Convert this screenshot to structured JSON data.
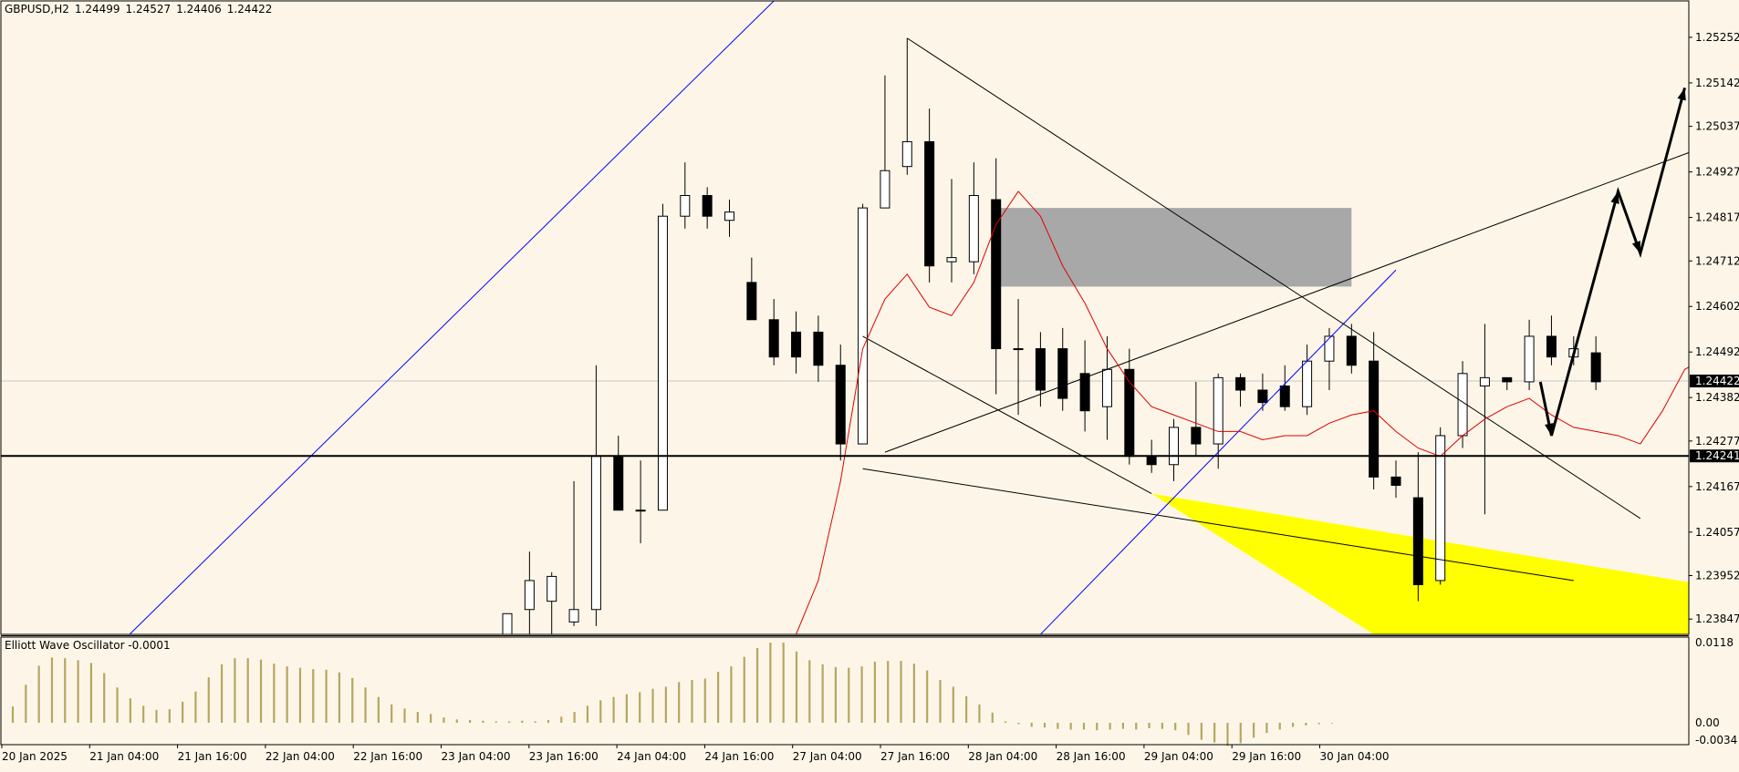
{
  "header": {
    "symbol": "GBPUSD,H2",
    "open": "1.24499",
    "high": "1.24527",
    "low": "1.24406",
    "close": "1.24422"
  },
  "oscillator": {
    "title": "Elliott Wave Oscillator -0.0001",
    "axis_labels": [
      "0.0118",
      "0.00",
      "-0.0034"
    ]
  },
  "colors": {
    "background": "#fdf6e8",
    "bull_candle": "#ffffff",
    "bear_candle": "#000000",
    "channel_line": "#0000ff",
    "moving_average": "#e00000",
    "supply_zone": "#a8a8a8",
    "demand_zone": "#ffff00",
    "oscillator_bars": "#b5a660"
  },
  "chart_data": {
    "type": "candlestick",
    "symbol": "GBPUSD",
    "timeframe": "H2",
    "price_axis_labels": [
      "1.25252",
      "1.25142",
      "1.25037",
      "1.24927",
      "1.24817",
      "1.24712",
      "1.24602",
      "1.24492",
      "1.24382",
      "1.24277",
      "1.24167",
      "1.24057",
      "1.23952",
      "1.23847"
    ],
    "current_price": "1.24422",
    "horizontal_level": "1.24241",
    "time_labels": [
      "20 Jan 2025",
      "21 Jan 04:00",
      "21 Jan 16:00",
      "22 Jan 04:00",
      "22 Jan 16:00",
      "23 Jan 04:00",
      "23 Jan 16:00",
      "24 Jan 04:00",
      "24 Jan 16:00",
      "27 Jan 04:00",
      "27 Jan 16:00",
      "28 Jan 04:00",
      "28 Jan 16:00",
      "29 Jan 04:00",
      "29 Jan 16:00",
      "30 Jan 04:00"
    ],
    "ylim": [
      1.2381,
      1.2534
    ],
    "candles": [
      {
        "o": 1.2381,
        "h": 1.2386,
        "l": 1.2381,
        "c": 1.2386
      },
      {
        "o": 1.2387,
        "h": 1.2401,
        "l": 1.2381,
        "c": 1.2394
      },
      {
        "o": 1.2389,
        "h": 1.2396,
        "l": 1.2381,
        "c": 1.2395
      },
      {
        "o": 1.2384,
        "h": 1.2418,
        "l": 1.2383,
        "c": 1.2387
      },
      {
        "o": 1.2387,
        "h": 1.2446,
        "l": 1.2383,
        "c": 1.2424
      },
      {
        "o": 1.2424,
        "h": 1.2429,
        "l": 1.2411,
        "c": 1.2411
      },
      {
        "o": 1.2411,
        "h": 1.2423,
        "l": 1.2403,
        "c": 1.2411
      },
      {
        "o": 1.2411,
        "h": 1.2485,
        "l": 1.2411,
        "c": 1.2482
      },
      {
        "o": 1.2482,
        "h": 1.2495,
        "l": 1.2479,
        "c": 1.2487
      },
      {
        "o": 1.2487,
        "h": 1.2489,
        "l": 1.2479,
        "c": 1.2482
      },
      {
        "o": 1.2481,
        "h": 1.2486,
        "l": 1.2477,
        "c": 1.2483
      },
      {
        "o": 1.2466,
        "h": 1.2472,
        "l": 1.2457,
        "c": 1.2457
      },
      {
        "o": 1.2457,
        "h": 1.2462,
        "l": 1.2446,
        "c": 1.2448
      },
      {
        "o": 1.2454,
        "h": 1.2459,
        "l": 1.2444,
        "c": 1.2448
      },
      {
        "o": 1.2454,
        "h": 1.2458,
        "l": 1.2442,
        "c": 1.2446
      },
      {
        "o": 1.2446,
        "h": 1.2451,
        "l": 1.2423,
        "c": 1.2427
      },
      {
        "o": 1.2427,
        "h": 1.2485,
        "l": 1.2427,
        "c": 1.2484
      },
      {
        "o": 1.2484,
        "h": 1.2516,
        "l": 1.2484,
        "c": 1.2493
      },
      {
        "o": 1.2494,
        "h": 1.2525,
        "l": 1.2492,
        "c": 1.25
      },
      {
        "o": 1.25,
        "h": 1.2508,
        "l": 1.2466,
        "c": 1.247
      },
      {
        "o": 1.2471,
        "h": 1.2491,
        "l": 1.2466,
        "c": 1.2472
      },
      {
        "o": 1.2471,
        "h": 1.2495,
        "l": 1.2468,
        "c": 1.2487
      },
      {
        "o": 1.2486,
        "h": 1.2496,
        "l": 1.2439,
        "c": 1.245
      },
      {
        "o": 1.245,
        "h": 1.2462,
        "l": 1.2434,
        "c": 1.245
      },
      {
        "o": 1.245,
        "h": 1.2454,
        "l": 1.2436,
        "c": 1.244
      },
      {
        "o": 1.245,
        "h": 1.2455,
        "l": 1.2435,
        "c": 1.2438
      },
      {
        "o": 1.2444,
        "h": 1.2452,
        "l": 1.243,
        "c": 1.2435
      },
      {
        "o": 1.2436,
        "h": 1.2453,
        "l": 1.2428,
        "c": 1.2445
      },
      {
        "o": 1.2445,
        "h": 1.245,
        "l": 1.2422,
        "c": 1.2424
      },
      {
        "o": 1.2424,
        "h": 1.2428,
        "l": 1.242,
        "c": 1.2422
      },
      {
        "o": 1.2422,
        "h": 1.2433,
        "l": 1.2418,
        "c": 1.2431
      },
      {
        "o": 1.2431,
        "h": 1.2442,
        "l": 1.2424,
        "c": 1.2427
      },
      {
        "o": 1.2427,
        "h": 1.2444,
        "l": 1.2421,
        "c": 1.2443
      },
      {
        "o": 1.2443,
        "h": 1.2444,
        "l": 1.2436,
        "c": 1.244
      },
      {
        "o": 1.244,
        "h": 1.2444,
        "l": 1.2435,
        "c": 1.2437
      },
      {
        "o": 1.2441,
        "h": 1.2446,
        "l": 1.2435,
        "c": 1.2436
      },
      {
        "o": 1.2436,
        "h": 1.2451,
        "l": 1.2434,
        "c": 1.2447
      },
      {
        "o": 1.2447,
        "h": 1.2455,
        "l": 1.244,
        "c": 1.2453
      },
      {
        "o": 1.2453,
        "h": 1.2456,
        "l": 1.2444,
        "c": 1.2446
      },
      {
        "o": 1.2447,
        "h": 1.2454,
        "l": 1.2416,
        "c": 1.2419
      },
      {
        "o": 1.2419,
        "h": 1.2423,
        "l": 1.2414,
        "c": 1.2417
      },
      {
        "o": 1.2414,
        "h": 1.2425,
        "l": 1.2389,
        "c": 1.2393
      },
      {
        "o": 1.2394,
        "h": 1.2431,
        "l": 1.2393,
        "c": 1.2429
      },
      {
        "o": 1.2429,
        "h": 1.2447,
        "l": 1.2426,
        "c": 1.2444
      },
      {
        "o": 1.2441,
        "h": 1.2456,
        "l": 1.241,
        "c": 1.2443
      },
      {
        "o": 1.2443,
        "h": 1.2443,
        "l": 1.244,
        "c": 1.2442
      },
      {
        "o": 1.2442,
        "h": 1.2457,
        "l": 1.244,
        "c": 1.2453
      },
      {
        "o": 1.2453,
        "h": 1.2458,
        "l": 1.2446,
        "c": 1.2448
      },
      {
        "o": 1.2448,
        "h": 1.2453,
        "l": 1.2446,
        "c": 1.245
      },
      {
        "o": 1.2449,
        "h": 1.2453,
        "l": 1.244,
        "c": 1.2442
      }
    ],
    "oscillator_values": [
      0.0024,
      0.0056,
      0.0084,
      0.0096,
      0.0095,
      0.0092,
      0.0088,
      0.0073,
      0.0052,
      0.0036,
      0.0025,
      0.0019,
      0.002,
      0.0031,
      0.0046,
      0.0067,
      0.0086,
      0.0095,
      0.0095,
      0.0093,
      0.0087,
      0.0083,
      0.0081,
      0.0079,
      0.0078,
      0.0074,
      0.0066,
      0.0052,
      0.0038,
      0.0027,
      0.0021,
      0.0016,
      0.0013,
      0.0008,
      0.0005,
      0.0004,
      0.0003,
      0.0002,
      0.0002,
      0.0003,
      0.0002,
      0.0004,
      0.0009,
      0.0016,
      0.0025,
      0.0033,
      0.0038,
      0.0042,
      0.0045,
      0.005,
      0.0053,
      0.006,
      0.0063,
      0.0065,
      0.0075,
      0.0083,
      0.0097,
      0.011,
      0.0118,
      0.0118,
      0.0105,
      0.0092,
      0.0086,
      0.0082,
      0.0081,
      0.0083,
      0.009,
      0.0091,
      0.0091,
      0.0087,
      0.0077,
      0.0063,
      0.0053,
      0.0039,
      0.0027,
      0.0015,
      0.0002,
      -0.0002,
      -0.0006,
      -0.0007,
      -0.0009,
      -0.001,
      -0.001,
      -0.0011,
      -0.001,
      -0.0009,
      -0.001,
      -0.0008,
      -0.0009,
      -0.0011,
      -0.0018,
      -0.0025,
      -0.0029,
      -0.0034,
      -0.003,
      -0.0022,
      -0.0015,
      -0.001,
      -0.0006,
      -0.0004,
      -0.0002,
      -0.0001
    ],
    "ma_points": [
      [
        13,
        1.2381
      ],
      [
        14,
        1.2394
      ],
      [
        15,
        1.2418
      ],
      [
        16,
        1.245
      ],
      [
        17,
        1.2462
      ],
      [
        18,
        1.2468
      ],
      [
        19,
        1.246
      ],
      [
        20,
        1.2458
      ],
      [
        21,
        1.2466
      ],
      [
        22,
        1.248
      ],
      [
        23,
        1.2488
      ],
      [
        24,
        1.2482
      ],
      [
        25,
        1.247
      ],
      [
        26,
        1.2461
      ],
      [
        27,
        1.245
      ],
      [
        28,
        1.2442
      ],
      [
        29,
        1.2436
      ],
      [
        30,
        1.2434
      ],
      [
        31,
        1.2432
      ],
      [
        32,
        1.243
      ],
      [
        33,
        1.243
      ],
      [
        34,
        1.2428
      ],
      [
        35,
        1.2429
      ],
      [
        36,
        1.2429
      ],
      [
        37,
        1.2432
      ],
      [
        38,
        1.2434
      ],
      [
        39,
        1.2435
      ],
      [
        40,
        1.243
      ],
      [
        41,
        1.2426
      ],
      [
        42,
        1.2424
      ],
      [
        43,
        1.2429
      ],
      [
        44,
        1.2433
      ],
      [
        45,
        1.2436
      ],
      [
        46,
        1.2438
      ],
      [
        47,
        1.2434
      ],
      [
        48,
        1.2431
      ],
      [
        49,
        1.243
      ],
      [
        50,
        1.2429
      ],
      [
        51,
        1.2427
      ],
      [
        52,
        1.2435
      ],
      [
        53,
        1.2445
      ],
      [
        54,
        1.2448
      ]
    ],
    "trendlines": [
      {
        "name": "blue-channel-upper",
        "color": "#0000ff",
        "p1": [
          -17,
          1.2381
        ],
        "p2": [
          12,
          1.2534
        ]
      },
      {
        "name": "blue-channel-lower",
        "color": "#0000ff",
        "p1": [
          24,
          1.2381
        ],
        "p2": [
          40,
          1.2469
        ]
      },
      {
        "name": "descending-line",
        "color": "#000000",
        "p1": [
          18,
          1.2525
        ],
        "p2": [
          51,
          1.2409
        ]
      },
      {
        "name": "rising-wedge-line",
        "color": "#000000",
        "p1": [
          17,
          1.2425
        ],
        "p2": [
          60,
          1.2511
        ]
      },
      {
        "name": "lower-left-diagonal",
        "color": "#000000",
        "p1": [
          16,
          1.2453
        ],
        "p2": [
          29,
          1.2415
        ]
      },
      {
        "name": "lower-support-line",
        "color": "#000000",
        "p1": [
          16,
          1.2421
        ],
        "p2": [
          48,
          1.2394
        ]
      }
    ],
    "zones": [
      {
        "name": "supply-zone",
        "color": "#a8a8a8",
        "x1": 22,
        "x2": 38,
        "y1": 1.2465,
        "y2": 1.2484
      },
      {
        "name": "demand-zone",
        "color": "#ffff00",
        "points": [
          [
            29,
            1.2415
          ],
          [
            55,
            1.2392
          ],
          [
            55,
            1.2381
          ],
          [
            39,
            1.2381
          ]
        ]
      }
    ],
    "projection_path": [
      [
        46.5,
        1.2442
      ],
      [
        47,
        1.2429
      ],
      [
        50,
        1.2488
      ],
      [
        51,
        1.2473
      ],
      [
        53,
        1.2513
      ]
    ]
  }
}
